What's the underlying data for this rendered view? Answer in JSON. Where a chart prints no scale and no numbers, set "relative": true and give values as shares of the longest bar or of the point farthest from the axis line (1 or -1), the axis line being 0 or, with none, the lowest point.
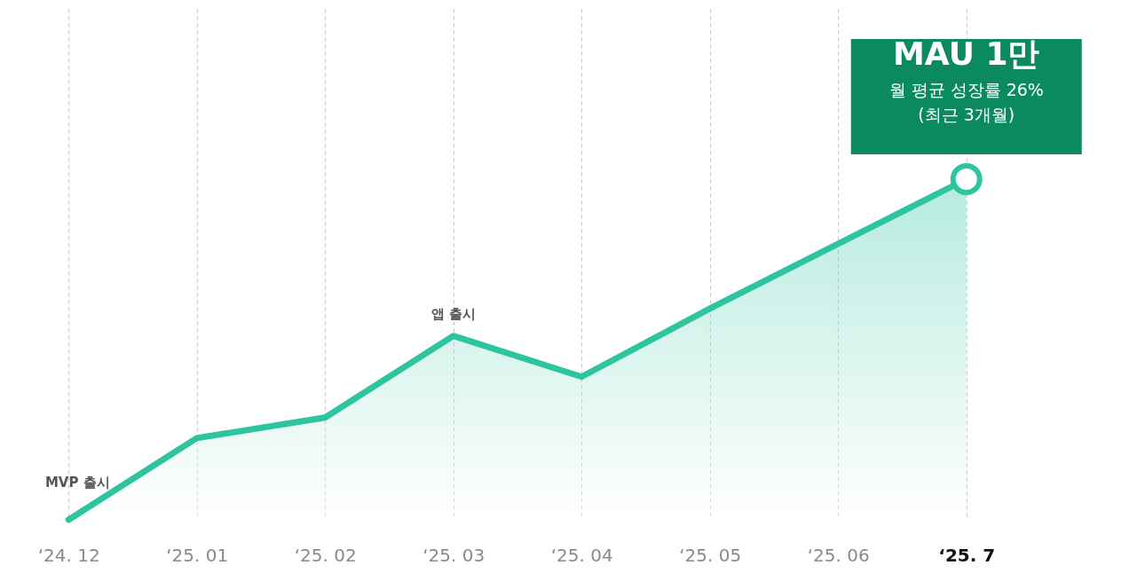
{
  "chart_data": {
    "type": "area",
    "relative": true,
    "categories": [
      "‘24. 12",
      "‘25. 01",
      "‘25. 02",
      "‘25. 03",
      "‘25. 04",
      "‘25. 05",
      "‘25. 06",
      "‘25. 7"
    ],
    "series": [
      {
        "color": "#2ec4a0",
        "values": [
          0,
          0.24,
          0.3,
          0.54,
          0.42,
          0.62,
          0.81,
          1
        ]
      }
    ],
    "grid": "x",
    "line_style": "solid",
    "marker": "none",
    "annotations": [
      {
        "text": "MVP 출시",
        "x": "‘24. 12",
        "y": 0
      },
      {
        "text": "앱 출시",
        "x": "‘25. 03",
        "y": 0.54
      },
      {
        "text": "MAU 1만\n월 평균 성장률 26%\n(최근 3개월)",
        "x": "‘25. 7",
        "y": 1
      }
    ]
  }
}
